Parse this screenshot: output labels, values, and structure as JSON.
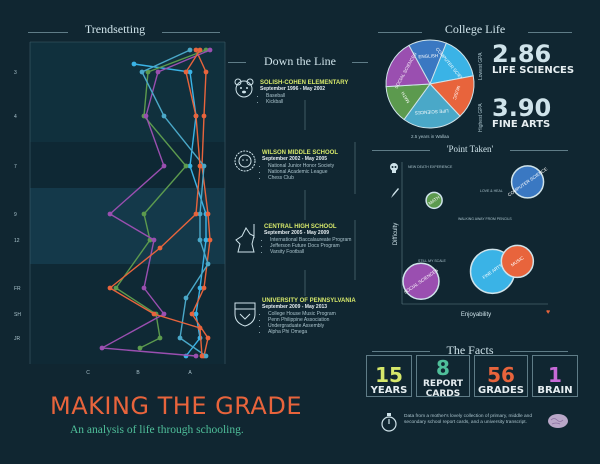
{
  "trendsetting": {
    "title": "Trendsetting",
    "grade_labels": [
      "3",
      "4",
      "7",
      "9",
      "12",
      "FR",
      "SH",
      "JR"
    ],
    "axis_labels": [
      "C",
      "B",
      "A"
    ],
    "colors": [
      "#3ab3e6",
      "#e8643c",
      "#5c9a4e",
      "#9a4fb0",
      "#4aa8c8",
      "#e8643c"
    ]
  },
  "down_the_line": {
    "title": "Down the Line",
    "schools": [
      {
        "name": "SOLISH-COHEN ELEMENTARY",
        "dates": "September 1996 - May 2002",
        "items": [
          "Baseball",
          "Kickball"
        ],
        "icon": "bear-icon"
      },
      {
        "name": "WILSON MIDDLE SCHOOL",
        "dates": "September 2002 - May 2005",
        "items": [
          "National Junior Honor Society",
          "National Academic League",
          "Chess Club"
        ],
        "icon": "lion-icon"
      },
      {
        "name": "CENTRAL HIGH SCHOOL",
        "dates": "September 2005 - May 2009",
        "items": [
          "International Baccalaureate Program",
          "Jefferson Future Docs Program",
          "Varsity Football"
        ],
        "icon": "knight-icon"
      },
      {
        "name": "UNIVERSITY OF PENNSYLVANIA",
        "dates": "September 2009 - May 2013",
        "items": [
          "College House Music Program",
          "Penn Philippine Association",
          "Undergraduate Assembly",
          "Alpha Phi Omega"
        ],
        "icon": "penn-shield-icon"
      }
    ]
  },
  "college_life": {
    "title": "College Life",
    "pie_caption": "2.5 years in Wallaa",
    "pie_slices": [
      {
        "label": "ENGLISH",
        "value": 14,
        "color": "#3a78c2"
      },
      {
        "label": "COMPUTER SCIENCE",
        "value": 16,
        "color": "#3ab3e6"
      },
      {
        "label": "MUSIC",
        "value": 16,
        "color": "#e8643c"
      },
      {
        "label": "LIFE SCIENCES",
        "value": 22,
        "color": "#4aa8c8"
      },
      {
        "label": "MATH",
        "value": 14,
        "color": "#5c9a4e"
      },
      {
        "label": "SOCIAL SCIENCES",
        "value": 18,
        "color": "#9a4fb0"
      }
    ],
    "stats": [
      {
        "side": "Lowest GPA",
        "value": "2.86",
        "label": "LIFE SCIENCES",
        "color": "#e8643c"
      },
      {
        "side": "Highest GPA",
        "value": "3.90",
        "label": "FINE ARTS",
        "color": "#3ab3e6"
      }
    ]
  },
  "point_taken": {
    "title": "'Point Taken'",
    "x_axis": "Enjoyability",
    "y_axis": "Difficulty",
    "bubbles": [
      {
        "label": "COMPUTER SCIENCE",
        "x": 8.6,
        "y": 8.6,
        "size": 16,
        "color": "#3a78c2"
      },
      {
        "label": "MATH",
        "x": 2.2,
        "y": 7.3,
        "size": 8,
        "color": "#5c9a4e"
      },
      {
        "label": "FINE ARTS",
        "x": 6.2,
        "y": 2.3,
        "size": 22,
        "color": "#3ab3e6"
      },
      {
        "label": "MUSIC",
        "x": 7.9,
        "y": 3.0,
        "size": 16,
        "color": "#e8643c"
      },
      {
        "label": "SOCIAL SCIENCES",
        "x": 1.3,
        "y": 1.6,
        "size": 18,
        "color": "#9a4fb0"
      }
    ],
    "notes": [
      "NEW DEATH EXPERIENCE",
      "LOVE & HEAL",
      "WALKING AWAY FROM PENCILS",
      "STILL MY SCALE"
    ]
  },
  "facts": {
    "title": "The Facts",
    "items": [
      {
        "num": "15",
        "label": "YEARS",
        "color": "#d6e86a"
      },
      {
        "num": "8",
        "label": "REPORT CARDS",
        "color": "#4fbf9a"
      },
      {
        "num": "56",
        "label": "GRADES",
        "color": "#e8643c"
      },
      {
        "num": "1",
        "label": "BRAIN",
        "color": "#c86ad8"
      }
    ],
    "note": "Data from a mother's lovely collection of primary, middle and secondary school report cards, and a university transcript."
  },
  "headline": {
    "title": "MAKING THE GRADE",
    "subtitle": "An analysis of life through schooling."
  }
}
